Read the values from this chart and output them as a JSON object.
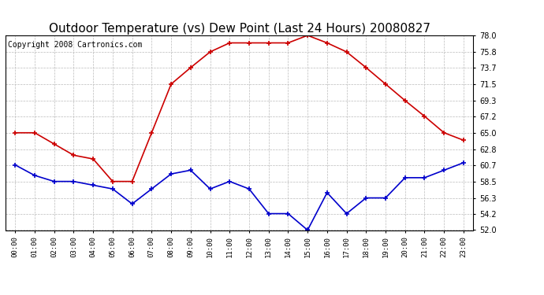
{
  "title": "Outdoor Temperature (vs) Dew Point (Last 24 Hours) 20080827",
  "copyright": "Copyright 2008 Cartronics.com",
  "hours": [
    "00:00",
    "01:00",
    "02:00",
    "03:00",
    "04:00",
    "05:00",
    "06:00",
    "07:00",
    "08:00",
    "09:00",
    "10:00",
    "11:00",
    "12:00",
    "13:00",
    "14:00",
    "15:00",
    "16:00",
    "17:00",
    "18:00",
    "19:00",
    "20:00",
    "21:00",
    "22:00",
    "23:00"
  ],
  "temp": [
    65.0,
    65.0,
    63.5,
    62.0,
    61.5,
    58.5,
    58.5,
    65.0,
    71.5,
    73.7,
    75.8,
    77.0,
    77.0,
    77.0,
    77.0,
    78.0,
    77.0,
    75.8,
    73.7,
    71.5,
    69.3,
    67.2,
    65.0,
    64.0
  ],
  "dew": [
    60.7,
    59.3,
    58.5,
    58.5,
    58.0,
    57.5,
    55.5,
    57.5,
    59.5,
    60.0,
    57.5,
    58.5,
    57.5,
    54.2,
    54.2,
    52.0,
    57.0,
    54.2,
    56.3,
    56.3,
    59.0,
    59.0,
    60.0,
    61.0
  ],
  "ylim": [
    52.0,
    78.0
  ],
  "yticks": [
    52.0,
    54.2,
    56.3,
    58.5,
    60.7,
    62.8,
    65.0,
    67.2,
    69.3,
    71.5,
    73.7,
    75.8,
    78.0
  ],
  "temp_color": "#cc0000",
  "dew_color": "#0000cc",
  "bg_color": "#ffffff",
  "grid_color": "#bbbbbb",
  "title_color": "#000000",
  "title_fontsize": 11,
  "copyright_fontsize": 7
}
